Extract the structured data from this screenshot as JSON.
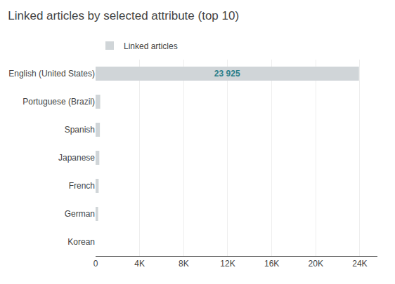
{
  "chart_data": {
    "type": "bar",
    "orientation": "horizontal",
    "title": "Linked articles by selected attribute (top 10)",
    "series": [
      {
        "name": "Linked articles",
        "color": "#d0d5d8",
        "values": [
          0,
          230,
          280,
          340,
          390,
          420,
          23925
        ],
        "value_labels": [
          null,
          null,
          null,
          null,
          null,
          null,
          "23 925"
        ]
      }
    ],
    "categories": [
      "Korean",
      "German",
      "French",
      "Japanese",
      "Spanish",
      "Portuguese (Brazil)",
      "English (United States)"
    ],
    "data_labels": true,
    "xlim": [
      0,
      25600
    ],
    "xticks": [
      0,
      {
        "value": 4000,
        "label": "4K"
      },
      {
        "value": 8000,
        "label": "8K"
      },
      {
        "value": 12000,
        "label": "12K"
      },
      {
        "value": 16000,
        "label": "16K"
      },
      {
        "value": 20000,
        "label": "20K"
      },
      {
        "value": 24000,
        "label": "24K"
      }
    ],
    "grid": true,
    "legend": "upper left"
  }
}
